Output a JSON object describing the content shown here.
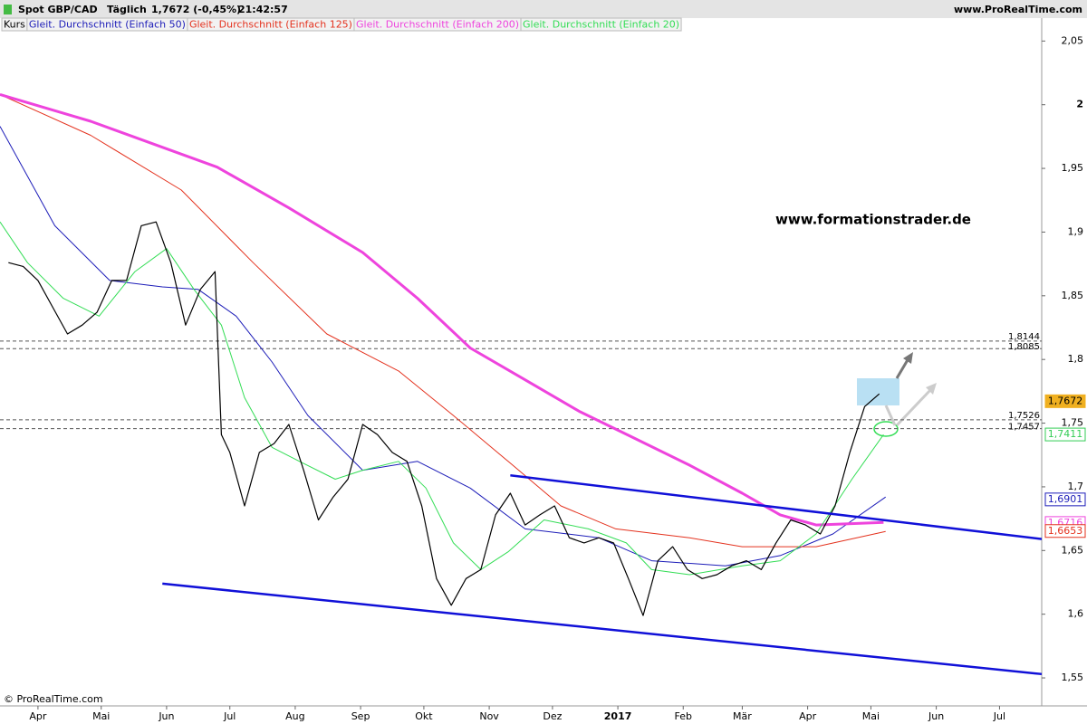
{
  "chart_data": {
    "type": "line",
    "title": "Spot GBP/CAD",
    "period": "Täglich",
    "quote": "1,7672 (-0,45%)",
    "time": "21:42:57",
    "site": "www.ProRealTime.com",
    "copyright": "© ProRealTime.com",
    "annotation": "www.formationstrader.de",
    "xlim": [
      -18,
      476
    ],
    "ylim": [
      1.528,
      2.068
    ],
    "xticks": [
      {
        "value": 0,
        "label": "Apr"
      },
      {
        "value": 30,
        "label": "Mai"
      },
      {
        "value": 61,
        "label": "Jun"
      },
      {
        "value": 91,
        "label": "Jul"
      },
      {
        "value": 122,
        "label": "Aug"
      },
      {
        "value": 153,
        "label": "Sep"
      },
      {
        "value": 183,
        "label": "Okt"
      },
      {
        "value": 214,
        "label": "Nov"
      },
      {
        "value": 244,
        "label": "Dez"
      },
      {
        "value": 275,
        "label": "2017"
      },
      {
        "value": 306,
        "label": "Feb"
      },
      {
        "value": 334,
        "label": "Mär"
      },
      {
        "value": 365,
        "label": "Apr"
      },
      {
        "value": 395,
        "label": "Mai"
      },
      {
        "value": 426,
        "label": "Jun"
      },
      {
        "value": 456,
        "label": "Jul"
      }
    ],
    "yticks": [
      {
        "value": 1.55,
        "label": "1,55"
      },
      {
        "value": 1.6,
        "label": "1,6"
      },
      {
        "value": 1.65,
        "label": "1,65"
      },
      {
        "value": 1.7,
        "label": "1,7"
      },
      {
        "value": 1.75,
        "label": "1,75"
      },
      {
        "value": 1.8,
        "label": "1,8"
      },
      {
        "value": 1.85,
        "label": "1,85"
      },
      {
        "value": 1.9,
        "label": "1,9"
      },
      {
        "value": 1.95,
        "label": "1,95"
      },
      2,
      {
        "value": 2.05,
        "label": "2,05"
      }
    ],
    "series": [
      {
        "name": "Kurs",
        "color": "#000000",
        "x": [
          -14,
          -7,
          0,
          7,
          14,
          21,
          28,
          35,
          42,
          49,
          56,
          63,
          70,
          77,
          84,
          87,
          91,
          98,
          105,
          112,
          119,
          126,
          133,
          140,
          147,
          154,
          161,
          168,
          175,
          182,
          189,
          196,
          203,
          210,
          217,
          224,
          231,
          238,
          245,
          252,
          259,
          266,
          273,
          280,
          287,
          294,
          301,
          308,
          315,
          322,
          329,
          336,
          343,
          350,
          357,
          364,
          371,
          378,
          385,
          392,
          399
        ],
        "values": [
          1.876,
          1.873,
          1.862,
          1.841,
          1.82,
          1.827,
          1.837,
          1.862,
          1.862,
          1.905,
          1.908,
          1.876,
          1.827,
          1.855,
          1.869,
          1.741,
          1.727,
          1.685,
          1.727,
          1.734,
          1.749,
          1.713,
          1.674,
          1.692,
          1.706,
          1.749,
          1.741,
          1.727,
          1.72,
          1.685,
          1.628,
          1.607,
          1.628,
          1.635,
          1.678,
          1.695,
          1.67,
          1.678,
          1.685,
          1.66,
          1.656,
          1.66,
          1.656,
          1.628,
          1.599,
          1.642,
          1.653,
          1.635,
          1.628,
          1.631,
          1.638,
          1.642,
          1.635,
          1.656,
          1.674,
          1.67,
          1.663,
          1.685,
          1.727,
          1.763,
          1.773
        ]
      },
      {
        "name": "Gleit. Durchschnitt (Einfach 50)",
        "color": "#1c1cb8",
        "width": 1,
        "x": [
          -18,
          8,
          34,
          59,
          76,
          94,
          111,
          128,
          154,
          180,
          205,
          231,
          266,
          291,
          326,
          352,
          377,
          402
        ],
        "values": [
          1.983,
          1.905,
          1.862,
          1.857,
          1.855,
          1.834,
          1.798,
          1.756,
          1.713,
          1.72,
          1.699,
          1.667,
          1.66,
          1.642,
          1.638,
          1.646,
          1.663,
          1.692
        ]
      },
      {
        "name": "Gleit. Durchschnitt (Einfach 125)",
        "color": "#e4321e",
        "width": 1,
        "x": [
          -18,
          25,
          68,
          102,
          137,
          171,
          197,
          223,
          248,
          274,
          309,
          334,
          369,
          402
        ],
        "values": [
          2.008,
          1.976,
          1.933,
          1.876,
          1.82,
          1.791,
          1.756,
          1.72,
          1.685,
          1.667,
          1.66,
          1.653,
          1.653,
          1.665
        ]
      },
      {
        "name": "Gleit. Durchschnitt (Einfach 200)",
        "color": "#ee44dd",
        "width": 3,
        "x": [
          -18,
          25,
          85,
          119,
          154,
          180,
          205,
          231,
          257,
          283,
          309,
          334,
          352,
          369,
          401
        ],
        "values": [
          2.008,
          1.987,
          1.951,
          1.919,
          1.884,
          1.848,
          1.809,
          1.784,
          1.759,
          1.738,
          1.717,
          1.695,
          1.678,
          1.67,
          1.672
        ]
      },
      {
        "name": "Gleit. Durchschnitt (Einfach 20)",
        "color": "#33dd55",
        "width": 1,
        "x": [
          -18,
          -5,
          12,
          29,
          46,
          61,
          74,
          87,
          98,
          111,
          124,
          141,
          154,
          171,
          184,
          197,
          210,
          223,
          240,
          261,
          279,
          291,
          309,
          334,
          352,
          369,
          386,
          401
        ],
        "values": [
          1.908,
          1.876,
          1.848,
          1.834,
          1.869,
          1.887,
          1.855,
          1.827,
          1.77,
          1.731,
          1.72,
          1.706,
          1.713,
          1.72,
          1.699,
          1.656,
          1.635,
          1.649,
          1.674,
          1.667,
          1.656,
          1.635,
          1.631,
          1.638,
          1.642,
          1.663,
          1.706,
          1.741
        ]
      }
    ],
    "trendlines": [
      {
        "color": "#1010d8",
        "x": [
          224,
          476
        ],
        "values": [
          1.709,
          1.659
        ]
      },
      {
        "color": "#1010d8",
        "x": [
          59,
          476
        ],
        "values": [
          1.624,
          1.553
        ]
      }
    ],
    "levels": [
      {
        "value": 1.8144,
        "label": "1,8144"
      },
      {
        "value": 1.8085,
        "label": "1,8085"
      },
      {
        "value": 1.7526,
        "label": "1,7526"
      },
      {
        "value": 1.7457,
        "label": "1,7457"
      }
    ],
    "price_labels": [
      {
        "value": 1.7672,
        "label": "1,7672",
        "color": "#f0b020"
      },
      {
        "value": 1.7411,
        "label": "1,7411",
        "color": "#33cc55"
      },
      {
        "value": 1.6901,
        "label": "1,6901",
        "color": "#1c1cb8"
      },
      {
        "value": 1.6716,
        "label": "1,6716",
        "color": "#ee44dd"
      },
      {
        "value": 1.6653,
        "label": "1,6653",
        "color": "#e4321e"
      }
    ]
  }
}
